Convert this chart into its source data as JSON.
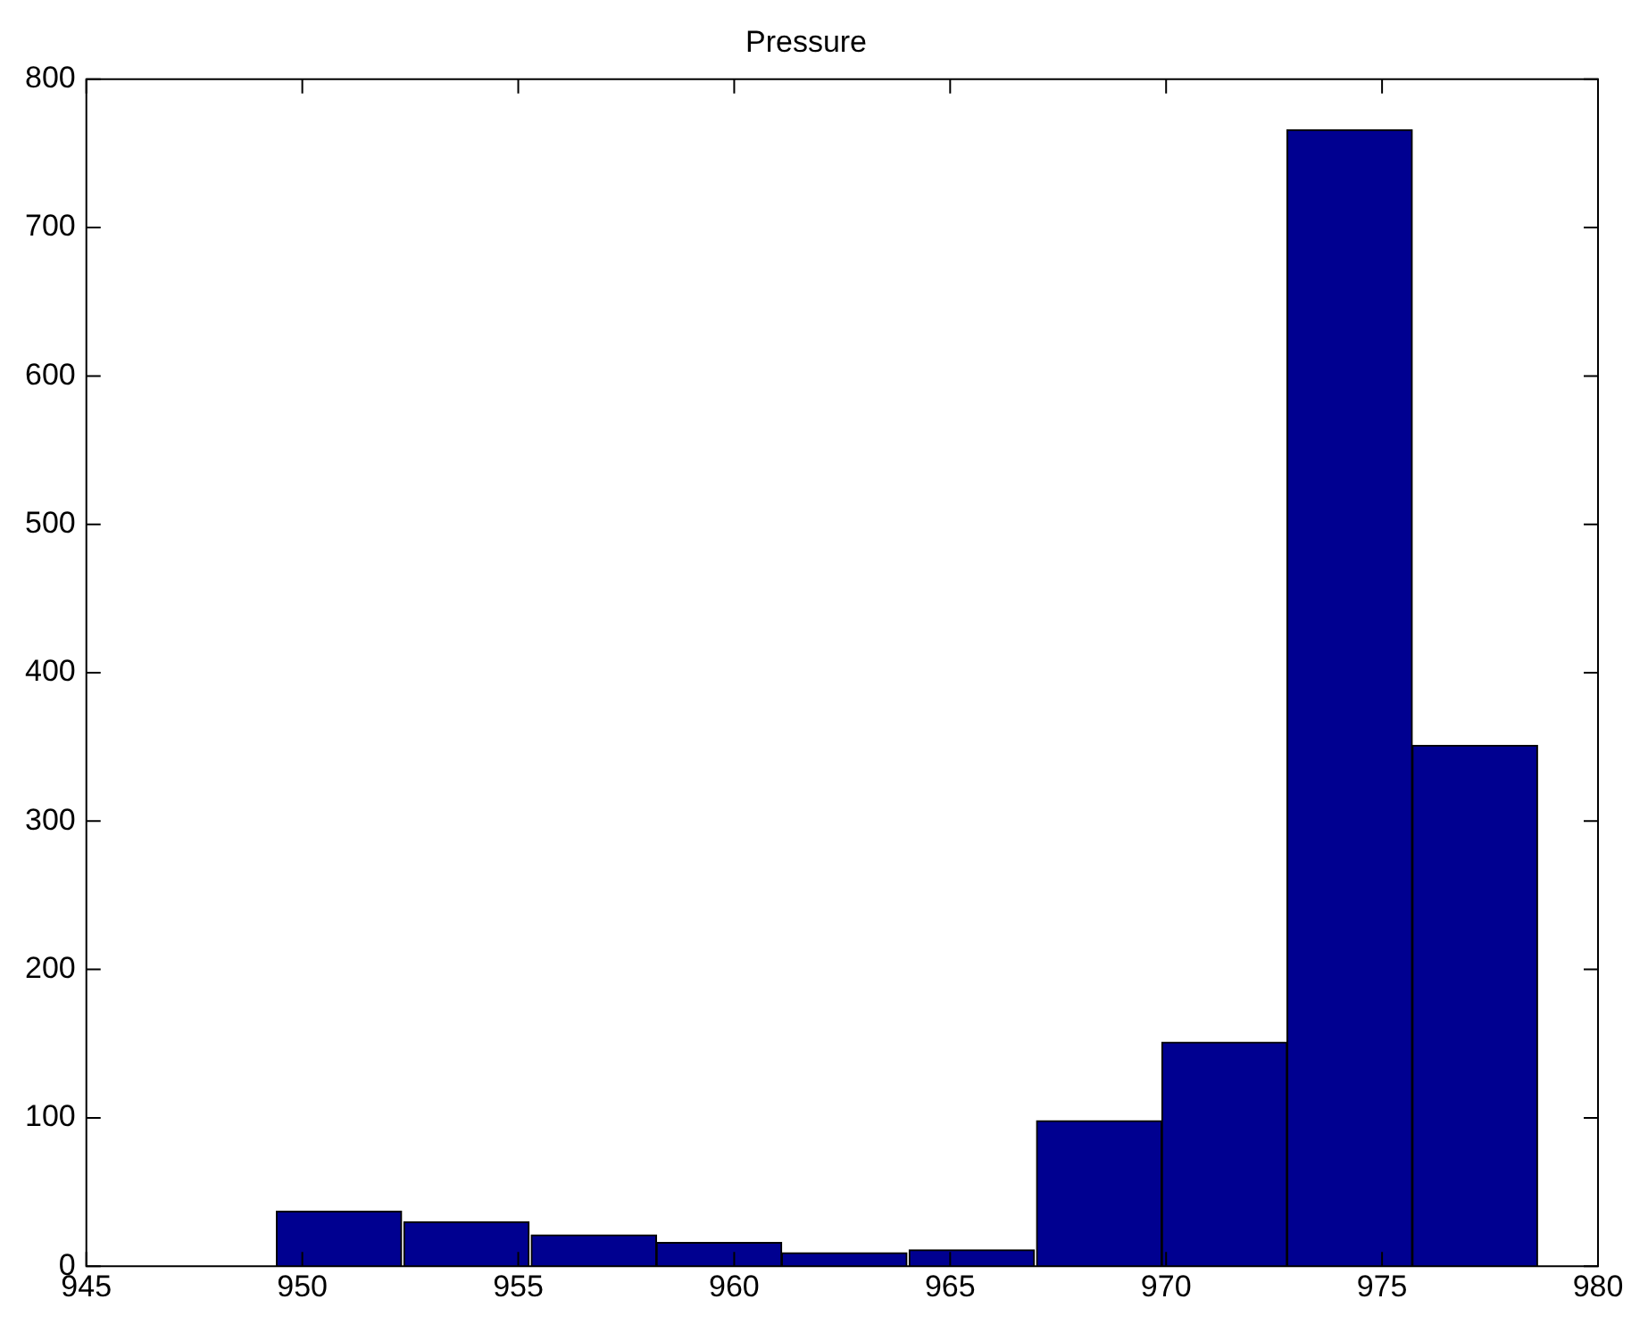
{
  "chart_data": {
    "type": "histogram",
    "title": "Pressure",
    "bins": [
      949.4,
      952.3,
      955.3,
      958.2,
      961.1,
      964.0,
      967.0,
      969.9,
      972.8,
      975.7,
      978.6
    ],
    "values": [
      37,
      30,
      21,
      16,
      9,
      11,
      98,
      151,
      766,
      351
    ],
    "color": "#000090",
    "xlim": [
      945,
      980
    ],
    "xticks": [
      945,
      950,
      955,
      960,
      965,
      970,
      975,
      980
    ],
    "ylim": [
      0,
      800
    ],
    "yticks": [
      0,
      100,
      200,
      300,
      400,
      500,
      600,
      700,
      800
    ],
    "grid": false,
    "legend": false
  }
}
